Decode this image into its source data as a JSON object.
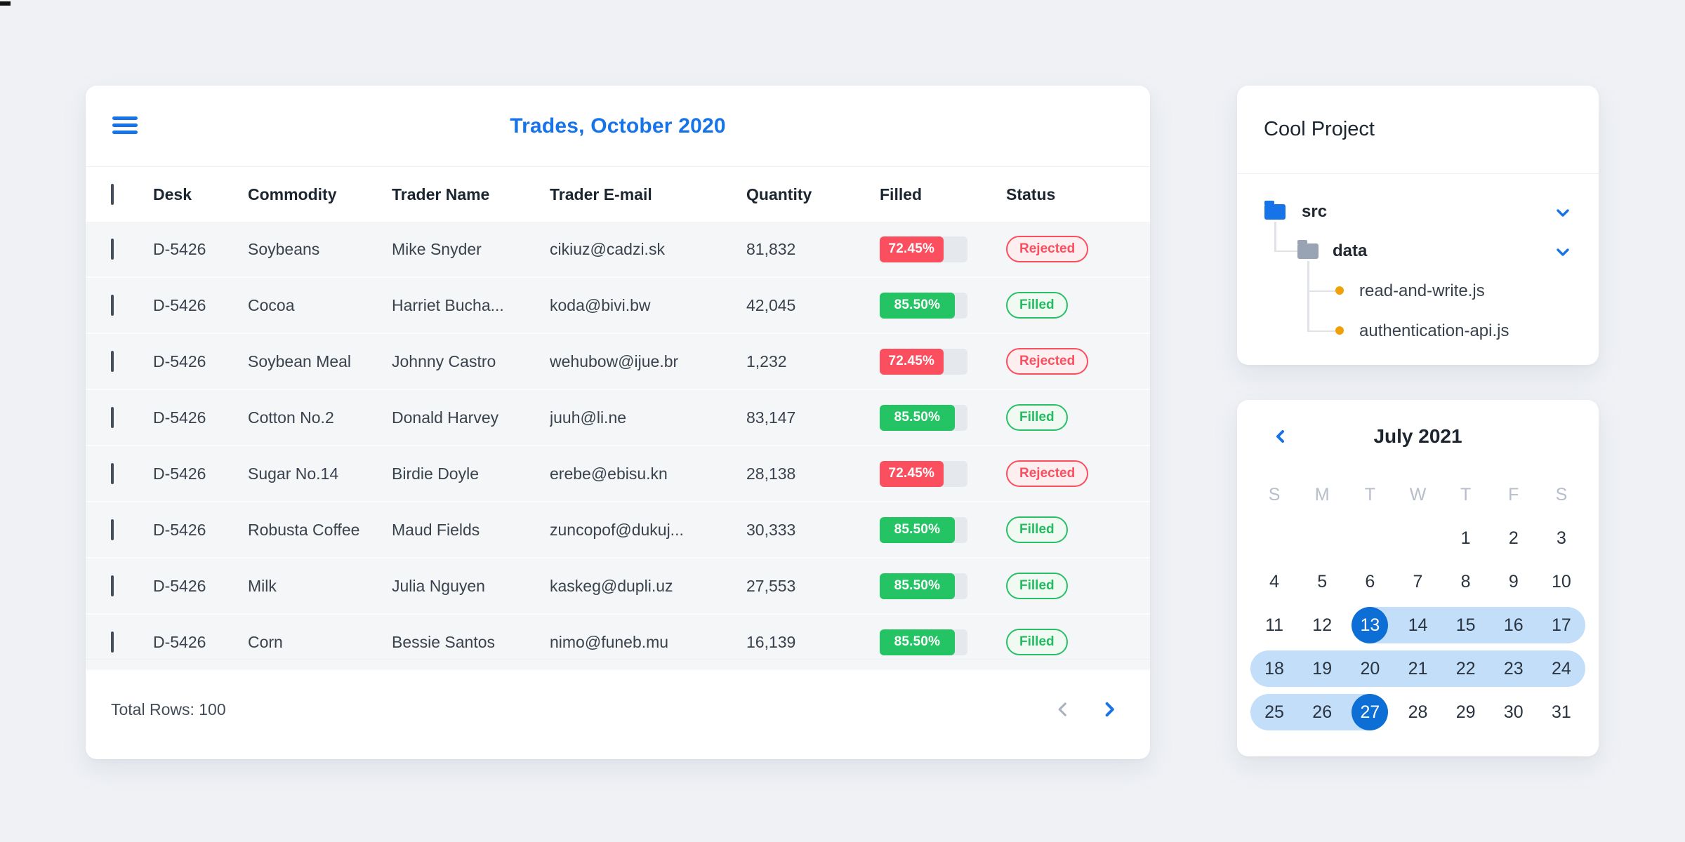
{
  "page": {
    "background": "#eff1f5"
  },
  "trades_card": {
    "menu_icon": "hamburger-icon",
    "title": "Trades, October 2020",
    "columns": [
      "Desk",
      "Commodity",
      "Trader Name",
      "Trader E-mail",
      "Quantity",
      "Filled",
      "Status"
    ],
    "rows": [
      {
        "desk": "D-5426",
        "commodity": "Soybeans",
        "trader": "Mike Snyder",
        "email": "cikiuz@cadzi.sk",
        "quantity": "81,832",
        "filled_label": "72.45%",
        "filled_value": 72.45,
        "status": "Rejected"
      },
      {
        "desk": "D-5426",
        "commodity": "Cocoa",
        "trader": "Harriet Bucha...",
        "email": "koda@bivi.bw",
        "quantity": "42,045",
        "filled_label": "85.50%",
        "filled_value": 85.5,
        "status": "Filled"
      },
      {
        "desk": "D-5426",
        "commodity": "Soybean Meal",
        "trader": "Johnny Castro",
        "email": "wehubow@ijue.br",
        "quantity": "1,232",
        "filled_label": "72.45%",
        "filled_value": 72.45,
        "status": "Rejected"
      },
      {
        "desk": "D-5426",
        "commodity": "Cotton No.2",
        "trader": "Donald Harvey",
        "email": "juuh@li.ne",
        "quantity": "83,147",
        "filled_label": "85.50%",
        "filled_value": 85.5,
        "status": "Filled"
      },
      {
        "desk": "D-5426",
        "commodity": "Sugar No.14",
        "trader": "Birdie Doyle",
        "email": "erebe@ebisu.kn",
        "quantity": "28,138",
        "filled_label": "72.45%",
        "filled_value": 72.45,
        "status": "Rejected"
      },
      {
        "desk": "D-5426",
        "commodity": "Robusta Coffee",
        "trader": "Maud Fields",
        "email": "zuncopof@dukuj...",
        "quantity": "30,333",
        "filled_label": "85.50%",
        "filled_value": 85.5,
        "status": "Filled"
      },
      {
        "desk": "D-5426",
        "commodity": "Milk",
        "trader": "Julia Nguyen",
        "email": "kaskeg@dupli.uz",
        "quantity": "27,553",
        "filled_label": "85.50%",
        "filled_value": 85.5,
        "status": "Filled"
      },
      {
        "desk": "D-5426",
        "commodity": "Corn",
        "trader": "Bessie Santos",
        "email": "nimo@funeb.mu",
        "quantity": "16,139",
        "filled_label": "85.50%",
        "filled_value": 85.5,
        "status": "Filled"
      }
    ],
    "footer": {
      "total_label": "Total Rows: 100",
      "prev_icon": "chevron-left-icon",
      "next_icon": "chevron-right-icon"
    },
    "colors": {
      "accent": "#1673e8",
      "rejected": "#fb4e5e",
      "filled": "#24c465",
      "track": "#e5e8ec"
    }
  },
  "project_card": {
    "title": "Cool Project",
    "tree": [
      {
        "name": "src",
        "type": "folder",
        "icon_color": "blue",
        "expanded": true
      },
      {
        "name": "data",
        "type": "folder",
        "icon_color": "gray",
        "expanded": true
      },
      {
        "name": "read-and-write.js",
        "type": "file",
        "bullet_color": "#f0a10a"
      },
      {
        "name": "authentication-api.js",
        "type": "file",
        "bullet_color": "#f0a10a"
      }
    ]
  },
  "calendar_card": {
    "title": "July 2021",
    "prev_icon": "chevron-left-icon",
    "day_headers": [
      "S",
      "M",
      "T",
      "W",
      "T",
      "F",
      "S"
    ],
    "weeks": [
      {
        "days": [
          "",
          "",
          "",
          "",
          "1",
          "2",
          "3"
        ]
      },
      {
        "days": [
          "4",
          "5",
          "6",
          "7",
          "8",
          "9",
          "10"
        ]
      },
      {
        "days": [
          "11",
          "12",
          "13",
          "14",
          "15",
          "16",
          "17"
        ],
        "range_start_cell": 2,
        "range_end_cell": null,
        "selected_cells": [
          2
        ]
      },
      {
        "days": [
          "18",
          "19",
          "20",
          "21",
          "22",
          "23",
          "24"
        ],
        "range_start_cell": null,
        "range_end_cell": null
      },
      {
        "days": [
          "25",
          "26",
          "27",
          "28",
          "29",
          "30",
          "31"
        ],
        "range_start_cell": null,
        "range_end_cell": 2,
        "selected_cells": [
          2
        ]
      }
    ],
    "selected_range": {
      "start_date": "13",
      "end_date": "27"
    },
    "colors": {
      "selected_circle": "#0d6ed6",
      "range_fill": "#c3def9"
    }
  }
}
